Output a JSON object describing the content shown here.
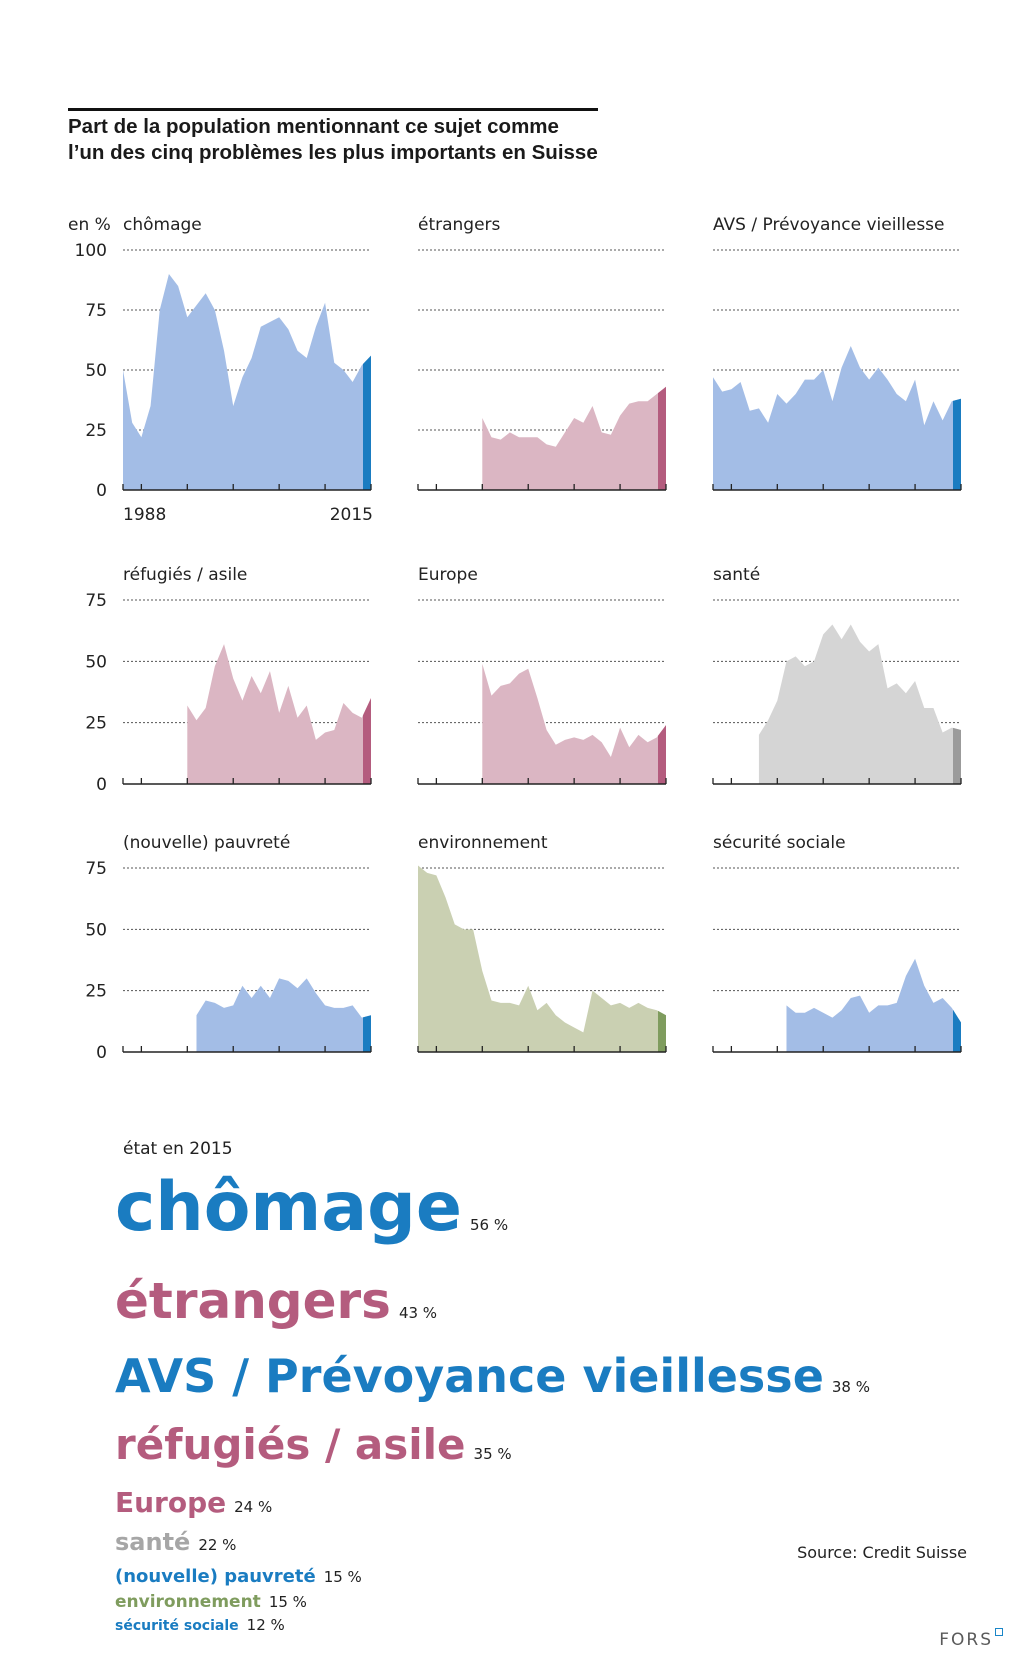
{
  "title": {
    "line1": "Part de la population mentionnant ce sujet comme",
    "line2": "l’un des cinq problèmes les plus importants en Suisse"
  },
  "unit_label": "en %",
  "source": "Source: Credit Suisse",
  "logo": "FORS",
  "colors": {
    "blue": "#a3bde6",
    "blue_accent": "#1a7cc1",
    "pink": "#dbb6c3",
    "pink_accent": "#b45c7e",
    "gray": "#d5d5d5",
    "gray_accent": "#9b9b9b",
    "green": "#cad0b2",
    "green_accent": "#7f9c5e",
    "ranking_blue": "#1a7cc1",
    "ranking_pink": "#b45c7e",
    "ranking_gray": "#a6a6a6",
    "ranking_green": "#7f9c5e"
  },
  "ranking": {
    "label": "état en 2015",
    "items": [
      {
        "name": "chômage",
        "pct": "56 %",
        "color": "ranking_blue"
      },
      {
        "name": "étrangers",
        "pct": "43 %",
        "color": "ranking_pink"
      },
      {
        "name": "AVS / Prévoyance vieillesse",
        "pct": "38 %",
        "color": "ranking_blue"
      },
      {
        "name": "réfugiés / asile",
        "pct": "35 %",
        "color": "ranking_pink"
      },
      {
        "name": "Europe",
        "pct": "24 %",
        "color": "ranking_pink"
      },
      {
        "name": "santé",
        "pct": "22 %",
        "color": "ranking_gray"
      },
      {
        "name": "(nouvelle) pauvreté",
        "pct": "15 %",
        "color": "ranking_blue"
      },
      {
        "name": "environnement",
        "pct": "15 %",
        "color": "ranking_green"
      },
      {
        "name": "sécurité sociale",
        "pct": "12 %",
        "color": "ranking_blue"
      }
    ]
  },
  "chart_data": [
    {
      "type": "area",
      "title": "chômage",
      "color": "blue",
      "x_start": 1988,
      "x_end": 2015,
      "xlabels": [
        "1988",
        "2015"
      ],
      "ylim": [
        0,
        100
      ],
      "yticks": [
        0,
        25,
        50,
        75,
        100
      ],
      "values": [
        50,
        28,
        22,
        35,
        75,
        90,
        85,
        72,
        77,
        82,
        75,
        58,
        35,
        47,
        55,
        68,
        70,
        72,
        67,
        58,
        55,
        68,
        78,
        53,
        50,
        45,
        52,
        56
      ]
    },
    {
      "type": "area",
      "title": "étrangers",
      "color": "pink",
      "x_start": 1988,
      "x_end": 2015,
      "ylim": [
        0,
        100
      ],
      "yticks": [
        0,
        25,
        50,
        75,
        100
      ],
      "values": [
        null,
        null,
        null,
        null,
        null,
        null,
        null,
        30,
        22,
        21,
        24,
        22,
        22,
        22,
        19,
        18,
        24,
        30,
        28,
        35,
        24,
        23,
        31,
        36,
        37,
        37,
        40,
        43
      ]
    },
    {
      "type": "area",
      "title": "AVS / Prévoyance vieillesse",
      "color": "blue",
      "x_start": 1988,
      "x_end": 2015,
      "ylim": [
        0,
        100
      ],
      "yticks": [
        0,
        25,
        50,
        75,
        100
      ],
      "values": [
        47,
        41,
        42,
        45,
        33,
        34,
        28,
        40,
        36,
        40,
        46,
        46,
        50,
        37,
        51,
        60,
        51,
        46,
        51,
        46,
        40,
        37,
        46,
        27,
        37,
        29,
        37,
        38
      ]
    },
    {
      "type": "area",
      "title": "réfugiés / asile",
      "color": "pink",
      "x_start": 1988,
      "x_end": 2015,
      "ylim": [
        0,
        75
      ],
      "yticks": [
        0,
        25,
        50,
        75
      ],
      "values": [
        null,
        null,
        null,
        null,
        null,
        null,
        null,
        32,
        26,
        31,
        48,
        57,
        43,
        34,
        44,
        37,
        46,
        29,
        40,
        27,
        32,
        18,
        21,
        22,
        33,
        29,
        27,
        35
      ]
    },
    {
      "type": "area",
      "title": "Europe",
      "color": "pink",
      "x_start": 1988,
      "x_end": 2015,
      "ylim": [
        0,
        75
      ],
      "yticks": [
        0,
        25,
        50,
        75
      ],
      "values": [
        null,
        null,
        null,
        null,
        null,
        null,
        null,
        49,
        36,
        40,
        41,
        45,
        47,
        35,
        22,
        16,
        18,
        19,
        18,
        20,
        17,
        11,
        23,
        15,
        20,
        17,
        19,
        24
      ]
    },
    {
      "type": "area",
      "title": "santé",
      "color": "gray",
      "x_start": 1988,
      "x_end": 2015,
      "ylim": [
        0,
        75
      ],
      "yticks": [
        0,
        25,
        50,
        75
      ],
      "values": [
        null,
        null,
        null,
        null,
        null,
        20,
        26,
        34,
        50,
        52,
        48,
        50,
        61,
        65,
        59,
        65,
        58,
        54,
        57,
        39,
        41,
        37,
        42,
        31,
        31,
        21,
        23,
        22
      ]
    },
    {
      "type": "area",
      "title": "(nouvelle) pauvreté",
      "color": "blue",
      "x_start": 1988,
      "x_end": 2015,
      "ylim": [
        0,
        75
      ],
      "yticks": [
        0,
        25,
        50,
        75
      ],
      "values": [
        null,
        null,
        null,
        null,
        null,
        null,
        null,
        null,
        15,
        21,
        20,
        18,
        19,
        27,
        22,
        27,
        22,
        30,
        29,
        26,
        30,
        24,
        19,
        18,
        18,
        19,
        14,
        15
      ]
    },
    {
      "type": "area",
      "title": "environnement",
      "color": "green",
      "x_start": 1988,
      "x_end": 2015,
      "ylim": [
        0,
        75
      ],
      "yticks": [
        0,
        25,
        50,
        75
      ],
      "values": [
        76,
        73,
        72,
        63,
        52,
        50,
        50,
        33,
        21,
        20,
        20,
        19,
        27,
        17,
        20,
        15,
        12,
        10,
        8,
        25,
        22,
        19,
        20,
        18,
        20,
        18,
        17,
        15
      ]
    },
    {
      "type": "area",
      "title": "sécurité sociale",
      "color": "blue",
      "x_start": 1988,
      "x_end": 2015,
      "ylim": [
        0,
        75
      ],
      "yticks": [
        0,
        25,
        50,
        75
      ],
      "values": [
        null,
        null,
        null,
        null,
        null,
        null,
        null,
        null,
        19,
        16,
        16,
        18,
        16,
        14,
        17,
        22,
        23,
        16,
        19,
        19,
        20,
        31,
        38,
        27,
        20,
        22,
        18,
        12
      ]
    }
  ]
}
